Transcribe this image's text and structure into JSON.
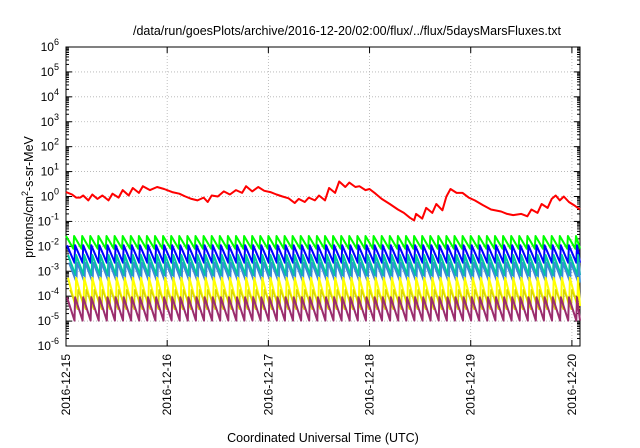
{
  "chart_data": {
    "type": "line",
    "title": "/data/run/goesPlots/archive/2016-12-20/02:00/flux/../flux/5daysMarsFluxes.txt",
    "xlabel": "Coordinated Universal Time (UTC)",
    "ylabel_base": "protons/cm",
    "ylabel_sup": "2",
    "ylabel_rest": "-s-sr-MeV",
    "y_scale": "log",
    "ylim": [
      1e-06,
      1000000.0
    ],
    "xlim_days": [
      0,
      5.08
    ],
    "x_ticks": [
      {
        "label": "2016-12-15",
        "day": 0
      },
      {
        "label": "2016-12-16",
        "day": 1
      },
      {
        "label": "2016-12-17",
        "day": 2
      },
      {
        "label": "2016-12-18",
        "day": 3
      },
      {
        "label": "2016-12-19",
        "day": 4
      },
      {
        "label": "2016-12-20",
        "day": 5
      }
    ],
    "y_ticks": [
      {
        "base": "10",
        "exp": "6",
        "value": 1000000.0
      },
      {
        "base": "10",
        "exp": "5",
        "value": 100000.0
      },
      {
        "base": "10",
        "exp": "4",
        "value": 10000.0
      },
      {
        "base": "10",
        "exp": "3",
        "value": 1000.0
      },
      {
        "base": "10",
        "exp": "2",
        "value": 100.0
      },
      {
        "base": "10",
        "exp": "1",
        "value": 10.0
      },
      {
        "base": "10",
        "exp": "0",
        "value": 1.0
      },
      {
        "base": "10",
        "exp": "-1",
        "value": 0.1
      },
      {
        "base": "10",
        "exp": "-2",
        "value": 0.01
      },
      {
        "base": "10",
        "exp": "-3",
        "value": 0.001
      },
      {
        "base": "10",
        "exp": "-4",
        "value": 0.0001
      },
      {
        "base": "10",
        "exp": "-5",
        "value": 1e-05
      },
      {
        "base": "10",
        "exp": "-6",
        "value": 1e-06
      }
    ],
    "grid": true,
    "legend": "none",
    "series": [
      {
        "color": "#ff0000",
        "lineWidth": 2,
        "points": [
          [
            0.0,
            1.5
          ],
          [
            0.06,
            1.2
          ],
          [
            0.1,
            0.9
          ],
          [
            0.14,
            0.9
          ],
          [
            0.17,
            1.1
          ],
          [
            0.22,
            0.7
          ],
          [
            0.26,
            1.2
          ],
          [
            0.31,
            0.8
          ],
          [
            0.36,
            1.1
          ],
          [
            0.42,
            0.7
          ],
          [
            0.46,
            1.3
          ],
          [
            0.52,
            0.9
          ],
          [
            0.56,
            1.8
          ],
          [
            0.62,
            1.1
          ],
          [
            0.66,
            2.2
          ],
          [
            0.72,
            1.4
          ],
          [
            0.76,
            2.6
          ],
          [
            0.83,
            1.8
          ],
          [
            0.9,
            2.4
          ],
          [
            0.97,
            2.0
          ],
          [
            1.05,
            1.5
          ],
          [
            1.12,
            1.3
          ],
          [
            1.18,
            1.0
          ],
          [
            1.24,
            0.8
          ],
          [
            1.3,
            0.7
          ],
          [
            1.36,
            0.9
          ],
          [
            1.4,
            0.6
          ],
          [
            1.44,
            1.1
          ],
          [
            1.5,
            1.0
          ],
          [
            1.56,
            1.6
          ],
          [
            1.62,
            1.2
          ],
          [
            1.68,
            1.8
          ],
          [
            1.74,
            1.4
          ],
          [
            1.78,
            2.6
          ],
          [
            1.84,
            1.6
          ],
          [
            1.9,
            2.4
          ],
          [
            1.96,
            1.7
          ],
          [
            2.02,
            1.5
          ],
          [
            2.08,
            1.2
          ],
          [
            2.14,
            1.0
          ],
          [
            2.2,
            0.85
          ],
          [
            2.26,
            0.55
          ],
          [
            2.3,
            0.8
          ],
          [
            2.36,
            0.6
          ],
          [
            2.4,
            0.9
          ],
          [
            2.46,
            0.7
          ],
          [
            2.5,
            1.1
          ],
          [
            2.56,
            0.7
          ],
          [
            2.6,
            2.2
          ],
          [
            2.66,
            1.4
          ],
          [
            2.7,
            4.0
          ],
          [
            2.76,
            2.4
          ],
          [
            2.8,
            3.6
          ],
          [
            2.86,
            2.4
          ],
          [
            2.9,
            2.6
          ],
          [
            2.96,
            1.8
          ],
          [
            3.0,
            2.0
          ],
          [
            3.06,
            1.3
          ],
          [
            3.12,
            0.8
          ],
          [
            3.2,
            0.5
          ],
          [
            3.28,
            0.3
          ],
          [
            3.34,
            0.22
          ],
          [
            3.4,
            0.14
          ],
          [
            3.44,
            0.11
          ],
          [
            3.46,
            0.2
          ],
          [
            3.52,
            0.13
          ],
          [
            3.56,
            0.35
          ],
          [
            3.62,
            0.22
          ],
          [
            3.66,
            0.5
          ],
          [
            3.72,
            0.28
          ],
          [
            3.76,
            1.0
          ],
          [
            3.8,
            2.0
          ],
          [
            3.86,
            1.4
          ],
          [
            3.92,
            1.4
          ],
          [
            3.98,
            0.9
          ],
          [
            4.04,
            0.7
          ],
          [
            4.12,
            0.45
          ],
          [
            4.2,
            0.3
          ],
          [
            4.3,
            0.25
          ],
          [
            4.36,
            0.2
          ],
          [
            4.42,
            0.18
          ],
          [
            4.5,
            0.2
          ],
          [
            4.56,
            0.16
          ],
          [
            4.6,
            0.3
          ],
          [
            4.66,
            0.22
          ],
          [
            4.7,
            0.5
          ],
          [
            4.76,
            0.35
          ],
          [
            4.8,
            0.8
          ],
          [
            4.84,
            1.1
          ],
          [
            4.88,
            0.7
          ],
          [
            4.92,
            1.0
          ],
          [
            4.97,
            0.6
          ],
          [
            5.02,
            0.45
          ],
          [
            5.08,
            0.3
          ]
        ]
      },
      {
        "color": "#00ff00",
        "lineWidth": 2,
        "sawtooth": true,
        "period": 0.08,
        "high": 0.026,
        "low": 0.008,
        "phase": 0.0
      },
      {
        "color": "#0000ff",
        "lineWidth": 2,
        "sawtooth": true,
        "period": 0.08,
        "high": 0.011,
        "low": 0.0022,
        "phase": 0.01
      },
      {
        "color": "#00c8a0",
        "lineWidth": 2,
        "sawtooth": true,
        "period": 0.08,
        "high": 0.0045,
        "low": 0.0007,
        "phase": 0.02
      },
      {
        "color": "#3a8ad6",
        "lineWidth": 1.8,
        "sawtooth": true,
        "period": 0.08,
        "high": 0.0022,
        "low": 0.00035,
        "phase": 0.03
      },
      {
        "color": "#ffff00",
        "lineWidth": 2,
        "sawtooth": true,
        "period": 0.08,
        "high": 0.00055,
        "low": 4e-05,
        "phase": 0.02
      },
      {
        "color": "#d8d800",
        "lineWidth": 1.6,
        "sawtooth": true,
        "period": 0.08,
        "high": 0.00018,
        "low": 3e-05,
        "phase": 0.04
      },
      {
        "color": "#9b2d6e",
        "lineWidth": 2,
        "sawtooth": true,
        "period": 0.08,
        "high": 9e-05,
        "low": 1.05e-05,
        "phase": 0.01
      }
    ]
  }
}
